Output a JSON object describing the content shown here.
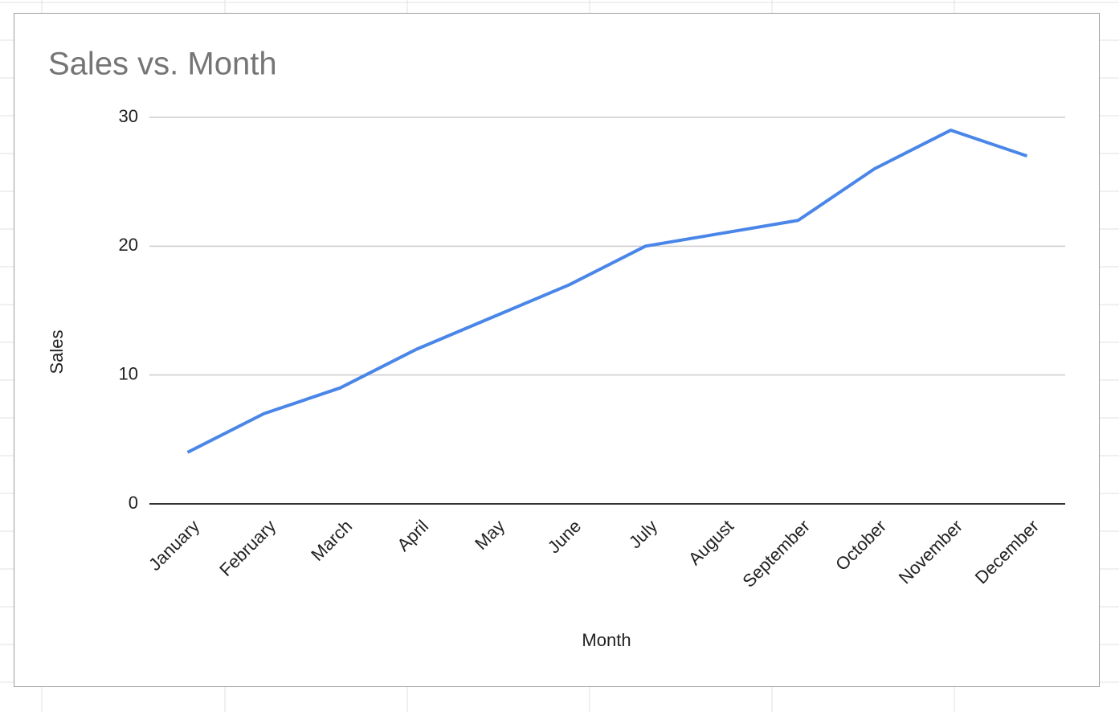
{
  "chart_data": {
    "type": "line",
    "title": "Sales vs. Month",
    "x_label": "Month",
    "y_label": "Sales",
    "categories": [
      "January",
      "February",
      "March",
      "April",
      "May",
      "June",
      "July",
      "August",
      "September",
      "October",
      "November",
      "December"
    ],
    "series": [
      {
        "name": "Sales",
        "color": "#4a86e8",
        "values": [
          4,
          7,
          9,
          12,
          14.5,
          17,
          20,
          21,
          22,
          26,
          29,
          27
        ]
      }
    ],
    "ylim": [
      0,
      30
    ],
    "yticks": [
      0,
      10,
      20,
      30
    ],
    "grid": true
  }
}
